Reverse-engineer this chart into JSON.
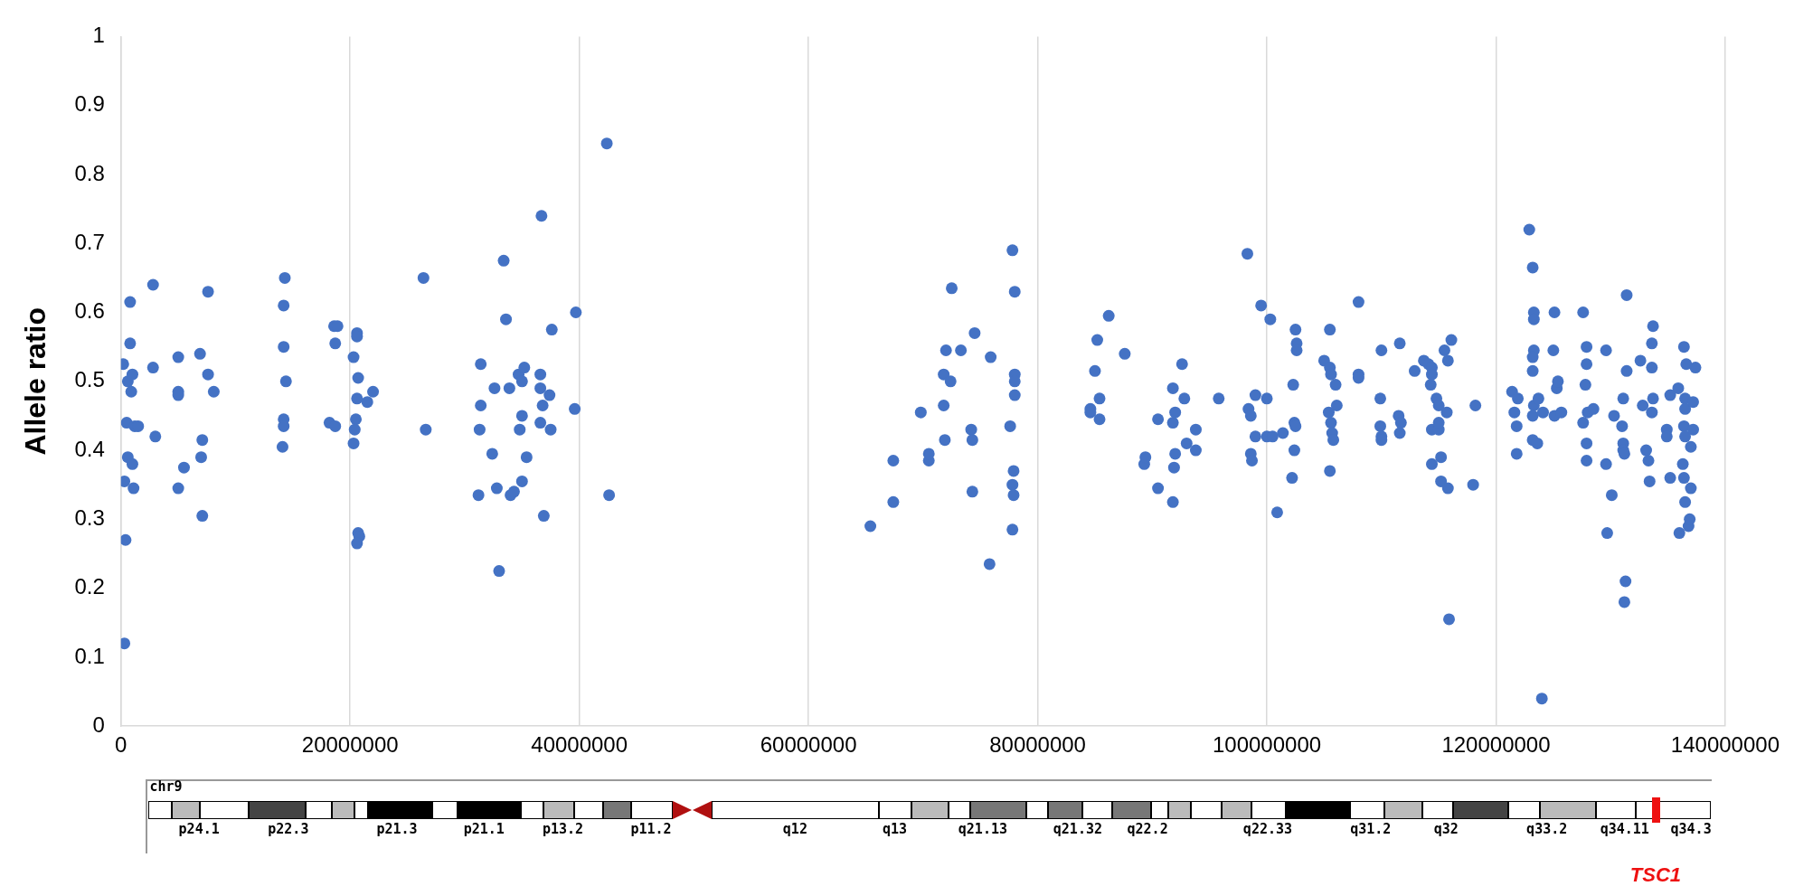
{
  "chart_data": {
    "type": "scatter",
    "ylabel": "Allele ratio",
    "xlim": [
      0,
      140000000
    ],
    "xticks": [
      0,
      20000000,
      40000000,
      60000000,
      80000000,
      100000000,
      120000000,
      140000000
    ],
    "ylim": [
      0,
      1
    ],
    "yticks": [
      0,
      0.1,
      0.2,
      0.3,
      0.4,
      0.5,
      0.6,
      0.7,
      0.8,
      0.9,
      1
    ],
    "grid": "x",
    "marker": "circle",
    "legend": false,
    "annotations": [
      "chr9",
      "p24.1",
      "p22.3",
      "p21.3",
      "p21.1",
      "p13.2",
      "p11.2",
      "q12",
      "q13",
      "q21.13",
      "q21.32",
      "q22.2",
      "q22.33",
      "q31.2",
      "q32",
      "q33.2",
      "q34.11",
      "q34.3",
      "TSC1"
    ],
    "series": [
      {
        "color": "#4472c4",
        "x": [
          200000,
          300000,
          400000,
          300000,
          500000,
          600000,
          600000,
          800000,
          800000,
          900000,
          1000000,
          1000000,
          1200000,
          1100000,
          1500000,
          2800000,
          2800000,
          3000000,
          5000000,
          5000000,
          5000000,
          5000000,
          5500000,
          6900000,
          7000000,
          7100000,
          7100000,
          7600000,
          7600000,
          8100000,
          14300000,
          14200000,
          14200000,
          14400000,
          14200000,
          14200000,
          14100000,
          18200000,
          18600000,
          18900000,
          18700000,
          18700000,
          20300000,
          20600000,
          20600000,
          20700000,
          20600000,
          20500000,
          20400000,
          20300000,
          20700000,
          20800000,
          20600000,
          21500000,
          22000000,
          26400000,
          26600000,
          31400000,
          31400000,
          31300000,
          31200000,
          32600000,
          32400000,
          32800000,
          33000000,
          33400000,
          33600000,
          33900000,
          34000000,
          34300000,
          34700000,
          34800000,
          35000000,
          35000000,
          35000000,
          35200000,
          35400000,
          36700000,
          36600000,
          36600000,
          36800000,
          36900000,
          37400000,
          37600000,
          37500000,
          36600000,
          39700000,
          39600000,
          42400000,
          42600000,
          65400000,
          67400000,
          67400000,
          69800000,
          70500000,
          70500000,
          71800000,
          72000000,
          71800000,
          71900000,
          72500000,
          72400000,
          73300000,
          74200000,
          74300000,
          74300000,
          74500000,
          75900000,
          75800000,
          77600000,
          77800000,
          78000000,
          78000000,
          78000000,
          78000000,
          77900000,
          77800000,
          77900000,
          77800000,
          84600000,
          84600000,
          85000000,
          85200000,
          85400000,
          85400000,
          86200000,
          87600000,
          89300000,
          89400000,
          90500000,
          90500000,
          91800000,
          91800000,
          92000000,
          92000000,
          91900000,
          91800000,
          92600000,
          92800000,
          93000000,
          93800000,
          93800000,
          95800000,
          98300000,
          98400000,
          98600000,
          98600000,
          98700000,
          99000000,
          99000000,
          99500000,
          100000000,
          100000000,
          100300000,
          100500000,
          100900000,
          101400000,
          102300000,
          102400000,
          102500000,
          102600000,
          102600000,
          102200000,
          102400000,
          102500000,
          105000000,
          105500000,
          105500000,
          105600000,
          105400000,
          105600000,
          105700000,
          105500000,
          105800000,
          106000000,
          106100000,
          108000000,
          108000000,
          108000000,
          110000000,
          109900000,
          109900000,
          110000000,
          110000000,
          111600000,
          111500000,
          111600000,
          111700000,
          112900000,
          113700000,
          114100000,
          114400000,
          114400000,
          114300000,
          114400000,
          114400000,
          114800000,
          115000000,
          115000000,
          115000000,
          115200000,
          115200000,
          115500000,
          115800000,
          115700000,
          115800000,
          116100000,
          115900000,
          118000000,
          118200000,
          121400000,
          121600000,
          121800000,
          121800000,
          121900000,
          122900000,
          123200000,
          123300000,
          123300000,
          123300000,
          123200000,
          123200000,
          123300000,
          123200000,
          123200000,
          123600000,
          123700000,
          124100000,
          124000000,
          125100000,
          125000000,
          125300000,
          125400000,
          125100000,
          125700000,
          127600000,
          127600000,
          127900000,
          127900000,
          127800000,
          128000000,
          127900000,
          127900000,
          128500000,
          129600000,
          129600000,
          129700000,
          130300000,
          130100000,
          131100000,
          131000000,
          131100000,
          131100000,
          131200000,
          131400000,
          131400000,
          131300000,
          131200000,
          132600000,
          132800000,
          133100000,
          133300000,
          133400000,
          133700000,
          133600000,
          133600000,
          133700000,
          133600000,
          134900000,
          134900000,
          135200000,
          135200000,
          135900000,
          136000000,
          136300000,
          136400000,
          136600000,
          136500000,
          136500000,
          136400000,
          136500000,
          136500000,
          136400000,
          136800000,
          136900000,
          137000000,
          137000000,
          137200000,
          137200000,
          137400000
        ],
        "values": [
          0.525,
          0.355,
          0.27,
          0.12,
          0.44,
          0.5,
          0.39,
          0.615,
          0.555,
          0.485,
          0.38,
          0.51,
          0.435,
          0.345,
          0.435,
          0.64,
          0.52,
          0.42,
          0.535,
          0.485,
          0.48,
          0.345,
          0.375,
          0.54,
          0.39,
          0.415,
          0.305,
          0.63,
          0.51,
          0.485,
          0.65,
          0.61,
          0.55,
          0.5,
          0.445,
          0.435,
          0.405,
          0.44,
          0.58,
          0.58,
          0.555,
          0.435,
          0.535,
          0.57,
          0.565,
          0.505,
          0.475,
          0.445,
          0.43,
          0.41,
          0.28,
          0.275,
          0.265,
          0.47,
          0.485,
          0.65,
          0.43,
          0.525,
          0.465,
          0.43,
          0.335,
          0.49,
          0.395,
          0.345,
          0.225,
          0.675,
          0.59,
          0.49,
          0.335,
          0.34,
          0.51,
          0.43,
          0.355,
          0.45,
          0.5,
          0.52,
          0.39,
          0.74,
          0.51,
          0.49,
          0.465,
          0.305,
          0.48,
          0.575,
          0.43,
          0.44,
          0.6,
          0.46,
          0.845,
          0.335,
          0.29,
          0.385,
          0.325,
          0.455,
          0.385,
          0.395,
          0.51,
          0.545,
          0.465,
          0.415,
          0.635,
          0.5,
          0.545,
          0.43,
          0.415,
          0.34,
          0.57,
          0.535,
          0.235,
          0.435,
          0.69,
          0.63,
          0.51,
          0.5,
          0.48,
          0.37,
          0.35,
          0.335,
          0.285,
          0.46,
          0.455,
          0.515,
          0.56,
          0.475,
          0.445,
          0.595,
          0.54,
          0.38,
          0.39,
          0.445,
          0.345,
          0.49,
          0.44,
          0.455,
          0.395,
          0.375,
          0.325,
          0.525,
          0.475,
          0.41,
          0.43,
          0.4,
          0.475,
          0.685,
          0.46,
          0.45,
          0.395,
          0.385,
          0.48,
          0.42,
          0.61,
          0.475,
          0.42,
          0.59,
          0.42,
          0.31,
          0.425,
          0.495,
          0.44,
          0.575,
          0.555,
          0.545,
          0.36,
          0.4,
          0.435,
          0.53,
          0.575,
          0.52,
          0.51,
          0.455,
          0.44,
          0.425,
          0.37,
          0.415,
          0.495,
          0.465,
          0.615,
          0.51,
          0.505,
          0.545,
          0.475,
          0.435,
          0.42,
          0.415,
          0.555,
          0.45,
          0.425,
          0.44,
          0.515,
          0.53,
          0.525,
          0.52,
          0.51,
          0.495,
          0.43,
          0.38,
          0.475,
          0.465,
          0.43,
          0.44,
          0.355,
          0.39,
          0.545,
          0.53,
          0.455,
          0.345,
          0.56,
          0.155,
          0.35,
          0.465,
          0.485,
          0.455,
          0.435,
          0.395,
          0.475,
          0.72,
          0.665,
          0.6,
          0.59,
          0.545,
          0.535,
          0.515,
          0.465,
          0.45,
          0.415,
          0.41,
          0.475,
          0.455,
          0.04,
          0.6,
          0.545,
          0.49,
          0.5,
          0.45,
          0.455,
          0.6,
          0.44,
          0.55,
          0.525,
          0.495,
          0.455,
          0.41,
          0.385,
          0.46,
          0.545,
          0.38,
          0.28,
          0.45,
          0.335,
          0.475,
          0.435,
          0.41,
          0.4,
          0.395,
          0.625,
          0.515,
          0.21,
          0.18,
          0.53,
          0.465,
          0.4,
          0.385,
          0.355,
          0.58,
          0.555,
          0.52,
          0.475,
          0.455,
          0.43,
          0.42,
          0.48,
          0.36,
          0.49,
          0.28,
          0.38,
          0.55,
          0.525,
          0.475,
          0.46,
          0.435,
          0.42,
          0.325,
          0.36,
          0.29,
          0.3,
          0.345,
          0.405,
          0.43,
          0.47,
          0.52
        ]
      }
    ]
  }
}
